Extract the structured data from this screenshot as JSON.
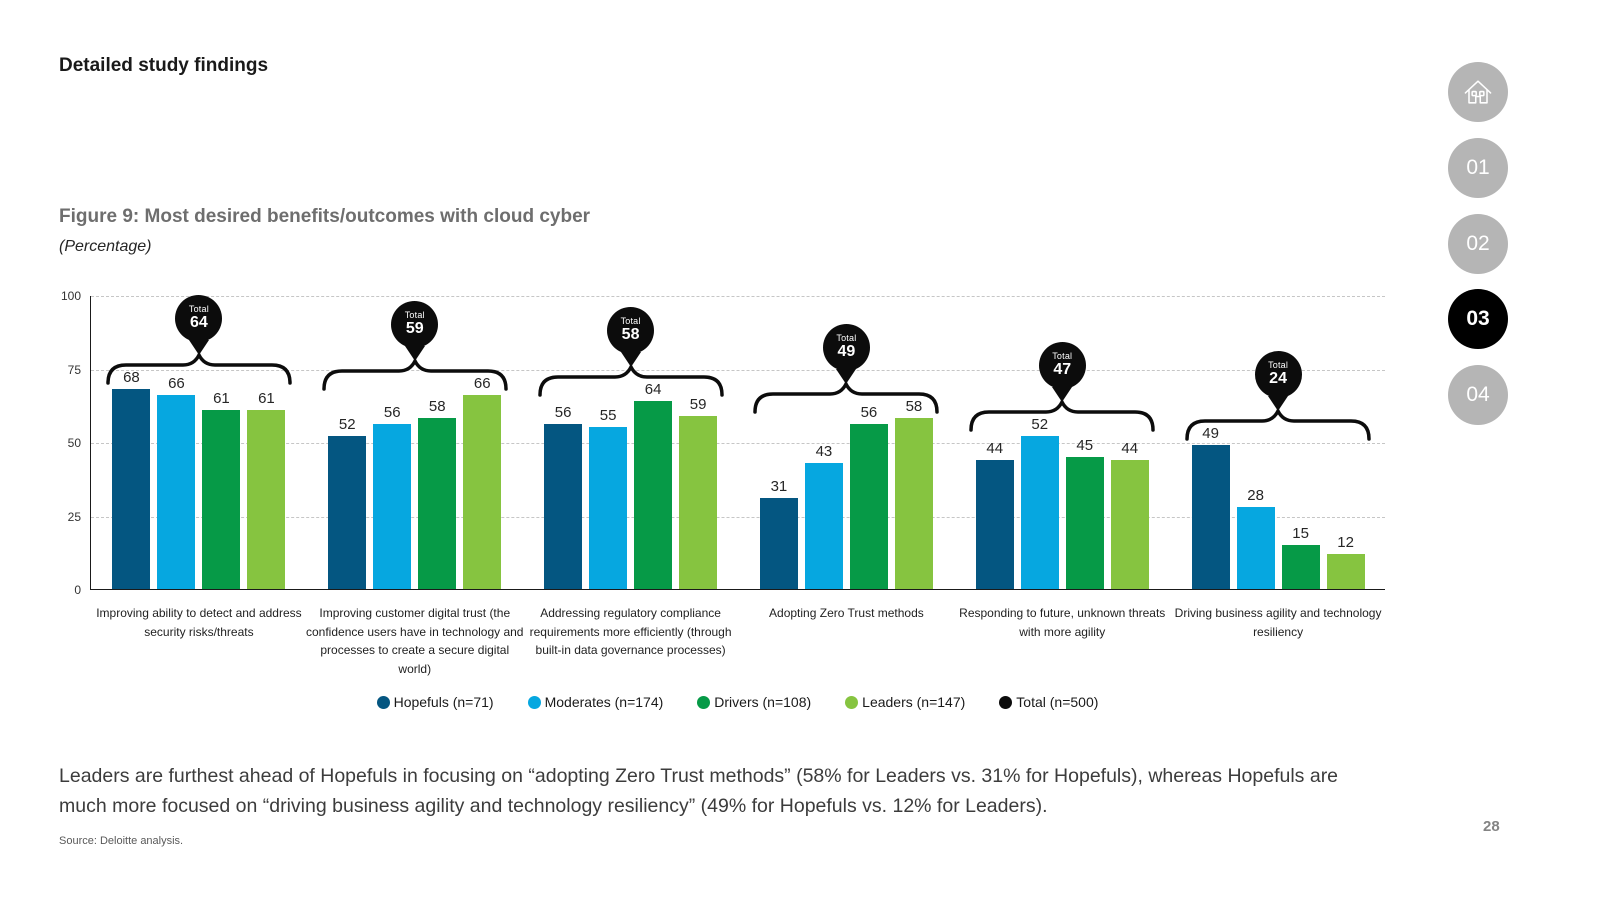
{
  "page": {
    "heading": "Detailed study findings",
    "body_text": "Leaders are furthest ahead of Hopefuls in focusing on “adopting Zero Trust methods” (58% for Leaders vs. 31% for Hopefuls), whereas Hopefuls are much more focused on “driving business agility and technology resiliency” (49% for Hopefuls vs. 12% for Leaders).",
    "source": "Source: Deloitte analysis.",
    "page_number": "28"
  },
  "nav": {
    "items": [
      {
        "label": "01",
        "active": false
      },
      {
        "label": "02",
        "active": false
      },
      {
        "label": "03",
        "active": true
      },
      {
        "label": "04",
        "active": false
      }
    ]
  },
  "figure": {
    "title": "Figure 9: Most desired benefits/outcomes with cloud cyber",
    "subtitle": "(Percentage)"
  },
  "chart_data": {
    "type": "bar",
    "title": "Figure 9: Most desired benefits/outcomes with cloud cyber",
    "unit": "Percentage",
    "ylim": [
      0,
      100
    ],
    "yticks": [
      0,
      25,
      50,
      75,
      100
    ],
    "grid": "horizontal-dashed",
    "legend_position": "bottom-center",
    "categories": [
      "Improving ability to detect and address security risks/threats",
      "Improving customer digital trust (the confidence users have in technology and processes to create a secure digital world)",
      "Addressing regulatory compliance requirements more efficiently (through built-in data governance processes)",
      "Adopting Zero Trust methods",
      "Responding to future, unknown threats with more agility",
      "Driving business agility and technology resiliency"
    ],
    "series": [
      {
        "name": "Hopefuls (n=71)",
        "color": "#045681",
        "values": [
          68,
          52,
          56,
          31,
          44,
          49
        ]
      },
      {
        "name": "Moderates (n=174)",
        "color": "#06a7e0",
        "values": [
          66,
          56,
          55,
          43,
          52,
          28
        ]
      },
      {
        "name": "Drivers (n=108)",
        "color": "#069a47",
        "values": [
          61,
          58,
          64,
          56,
          45,
          15
        ]
      },
      {
        "name": "Leaders (n=147)",
        "color": "#86c440",
        "values": [
          61,
          66,
          59,
          58,
          44,
          12
        ]
      }
    ],
    "totals": {
      "name": "Total  (n=500)",
      "label": "Total",
      "color": "#0c0c0c",
      "values": [
        64,
        59,
        58,
        49,
        47,
        24
      ]
    }
  }
}
